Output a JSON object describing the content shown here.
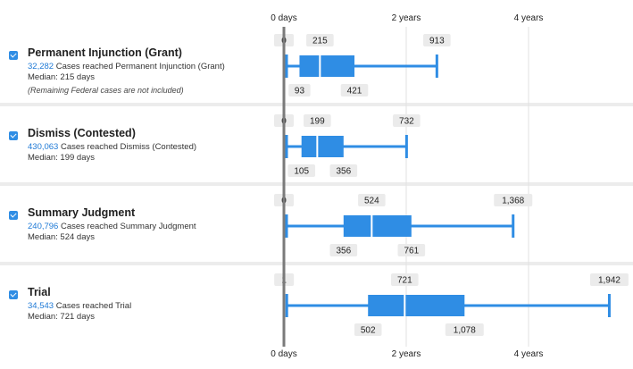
{
  "axis": {
    "ticks": [
      {
        "label": "0 days",
        "days": 0
      },
      {
        "label": "2 years",
        "days": 730
      },
      {
        "label": "4 years",
        "days": 1460
      }
    ],
    "max_days": 1960
  },
  "rows": [
    {
      "title": "Permanent Injunction (Grant)",
      "count": "32,282",
      "count_text": " Cases reached Permanent Injunction (Grant)",
      "median_text": "Median: 215 days",
      "note": "(Remaining Federal cases are not included)",
      "checked": true
    },
    {
      "title": "Dismiss (Contested)",
      "count": "430,063",
      "count_text": " Cases reached Dismiss (Contested)",
      "median_text": "Median: 199 days",
      "checked": true
    },
    {
      "title": "Summary Judgment",
      "count": "240,796",
      "count_text": " Cases reached Summary Judgment",
      "median_text": "Median: 524 days",
      "checked": true
    },
    {
      "title": "Trial",
      "count": "34,543",
      "count_text": " Cases reached Trial",
      "median_text": "Median: 721 days",
      "checked": true
    }
  ],
  "chart_data": {
    "type": "boxplot",
    "x_unit": "days",
    "categories": [
      "Permanent Injunction (Grant)",
      "Dismiss (Contested)",
      "Summary Judgment",
      "Trial"
    ],
    "series": [
      {
        "min": 0,
        "q1": 93,
        "median": 215,
        "q3": 421,
        "max": 913,
        "labels": {
          "min": "0",
          "q1": "93",
          "median": "215",
          "q3": "421",
          "max": "913"
        }
      },
      {
        "min": 0,
        "q1": 105,
        "median": 199,
        "q3": 356,
        "max": 732,
        "labels": {
          "min": "0",
          "q1": "105",
          "median": "199",
          "q3": "356",
          "max": "732"
        }
      },
      {
        "min": 0,
        "q1": 356,
        "median": 524,
        "q3": 761,
        "max": 1368,
        "labels": {
          "min": "0",
          "q1": "356",
          "median": "524",
          "q3": "761",
          "max": "1,368"
        }
      },
      {
        "min": 1,
        "q1": 502,
        "median": 721,
        "q3": 1078,
        "max": 1942,
        "labels": {
          "min": "1",
          "q1": "502",
          "median": "721",
          "q3": "1,078",
          "max": "1,942"
        }
      }
    ],
    "colors": {
      "box": "#2f8de4",
      "label_bg": "#ebebeb",
      "axis_line": "#7a7a7a",
      "grid": "#e2e2e2"
    }
  }
}
